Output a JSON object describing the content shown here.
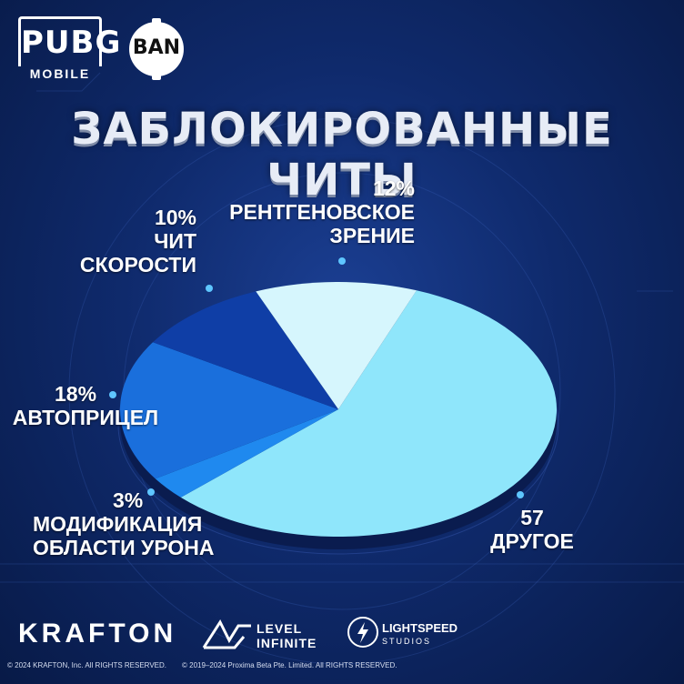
{
  "header": {
    "logo_main": "PUBG",
    "logo_sub": "MOBILE",
    "badge": "BAN",
    "title": "ЗАБЛОКИРОВАННЫЕ ЧИТЫ"
  },
  "chart_data": {
    "type": "pie",
    "title": "ЗАБЛОКИРОВАННЫЕ ЧИТЫ",
    "slices": [
      {
        "label": "ДРУГОЕ",
        "value": 57,
        "display": "57",
        "color": "#8fe6fb"
      },
      {
        "label": "МОДИФИКАЦИЯ ОБЛАСТИ УРОНА",
        "value": 3,
        "display": "3%",
        "color": "#1f89ef"
      },
      {
        "label": "АВТОПРИЦЕЛ",
        "value": 18,
        "display": "18%",
        "color": "#1a6fdc"
      },
      {
        "label": "ЧИТ СКОРОСТИ",
        "value": 10,
        "display": "10%",
        "color": "#0f3ea6"
      },
      {
        "label": "РЕНТГЕНОВСКОЕ ЗРЕНИЕ",
        "value": 12,
        "display": "12%",
        "color": "#d6f6fd"
      }
    ],
    "labels": {
      "other": {
        "pct": "57",
        "lines": [
          "ДРУГОЕ"
        ]
      },
      "area": {
        "pct": "3%",
        "lines": [
          "МОДИФИКАЦИЯ",
          "ОБЛАСТИ УРОНА"
        ]
      },
      "aim": {
        "pct": "18%",
        "lines": [
          "АВТОПРИЦЕЛ"
        ]
      },
      "speed": {
        "pct": "10%",
        "lines": [
          "ЧИТ",
          "СКОРОСТИ"
        ]
      },
      "xray": {
        "pct": "12%",
        "lines": [
          "РЕНТГЕНОВСКОЕ",
          "ЗРЕНИЕ"
        ]
      }
    }
  },
  "footer": {
    "krafton": "KRAFTON",
    "level_line1": "LEVEL",
    "level_line2": "INFINITE",
    "lightspeed_line1": "LIGHTSPEED",
    "lightspeed_line2": "STUDIOS",
    "copyright_left": "© 2024 KRAFTON, Inc. All RIGHTS RESERVED.",
    "copyright_right": "© 2019–2024 Proxima Beta Pte. Limited. All RIGHTS RESERVED."
  }
}
